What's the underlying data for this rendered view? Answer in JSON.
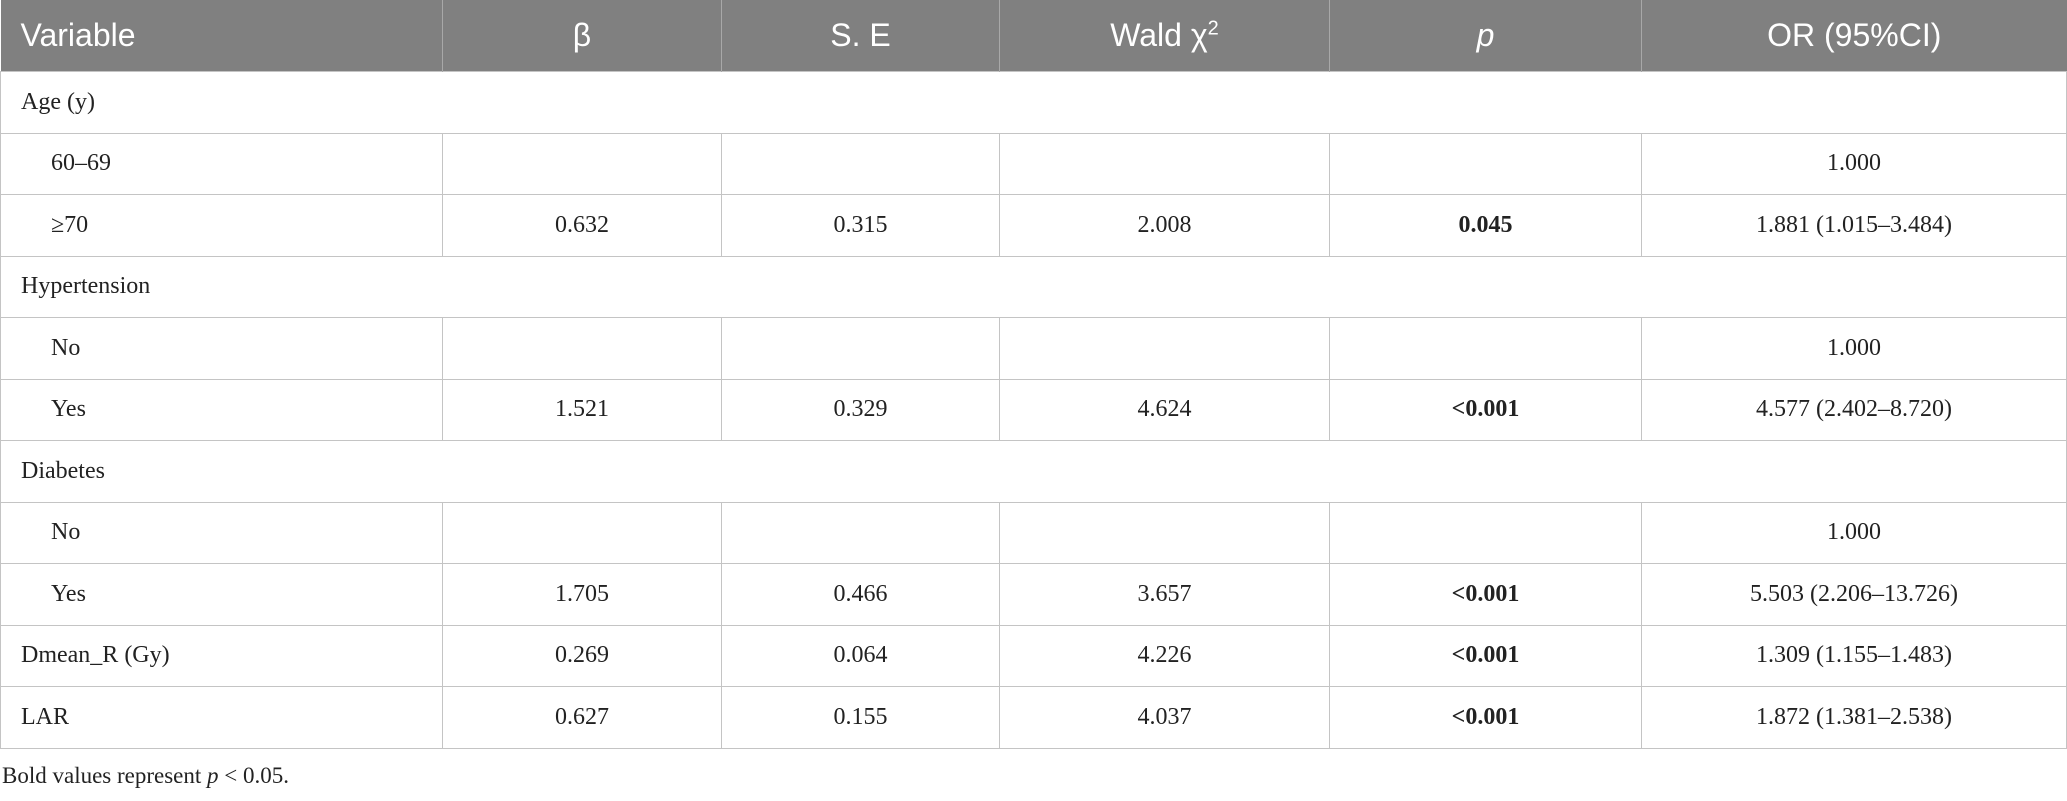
{
  "table": {
    "header": [
      "Variable",
      "β",
      "S. E",
      {
        "text": "Wald χ",
        "sup": "2"
      },
      "p",
      "OR (95%CI)"
    ],
    "sections": [
      {
        "title": "Age (y)",
        "rows": [
          [
            "60–69",
            null,
            null,
            null,
            null,
            "1.000"
          ],
          [
            "≥70",
            "0.632",
            "0.315",
            "2.008",
            "0.045",
            "1.881 (1.015–3.484)"
          ]
        ]
      },
      {
        "title": "Hypertension",
        "rows": [
          [
            "No",
            null,
            null,
            null,
            null,
            "1.000"
          ],
          [
            "Yes",
            "1.521",
            "0.329",
            "4.624",
            "<0.001",
            "4.577 (2.402–8.720)"
          ]
        ]
      },
      {
        "title": "Diabetes",
        "rows": [
          [
            "No",
            null,
            null,
            null,
            null,
            "1.000"
          ],
          [
            "Yes",
            "1.705",
            "0.466",
            "3.657",
            "<0.001",
            "5.503 (2.206–13.726)"
          ]
        ]
      },
      {
        "rows": [
          [
            "Dmean_R (Gy)",
            "0.269",
            "0.064",
            "4.226",
            "<0.001",
            "1.309 (1.155–1.483)"
          ],
          [
            "LAR",
            "0.627",
            "0.155",
            "4.037",
            "<0.001",
            "1.872 (1.381–2.538)"
          ]
        ]
      }
    ],
    "footnote": [
      "Bold values represent ",
      "p",
      " < 0.05."
    ]
  }
}
